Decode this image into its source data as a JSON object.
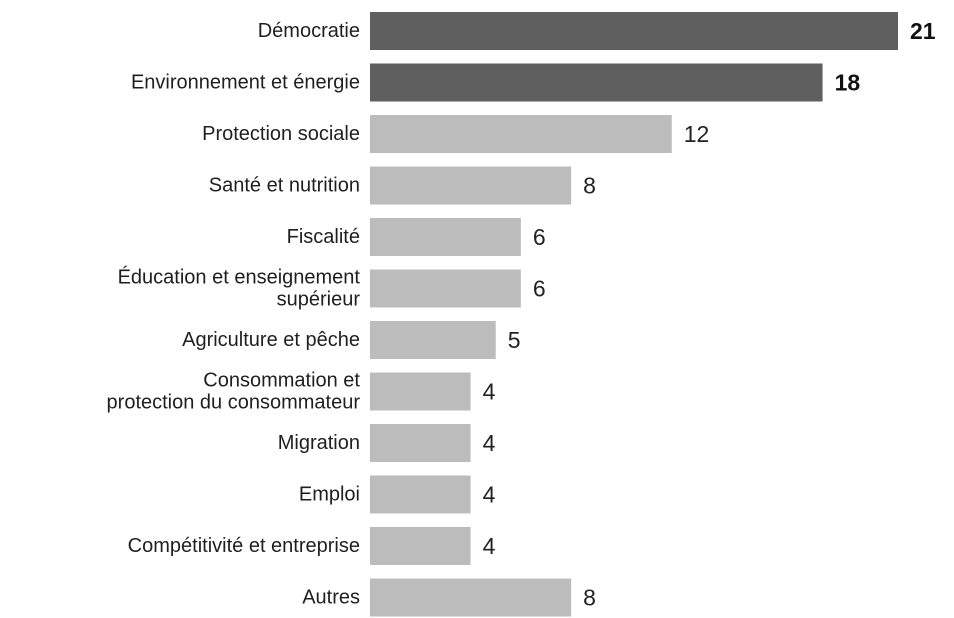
{
  "chart_data": {
    "type": "bar",
    "orientation": "horizontal",
    "categories": [
      "Démocratie",
      "Environnement et énergie",
      "Protection sociale",
      "Santé et nutrition",
      "Fiscalité",
      "Éducation et enseignement supérieur",
      "Agriculture et pêche",
      "Consommation et protection du consommateur",
      "Migration",
      "Emploi",
      "Compétitivité et entreprise",
      "Autres"
    ],
    "values": [
      21,
      18,
      12,
      8,
      6,
      6,
      5,
      4,
      4,
      4,
      4,
      8
    ],
    "highlighted": [
      true,
      true,
      false,
      false,
      false,
      false,
      false,
      false,
      false,
      false,
      false,
      false
    ],
    "xlim": [
      0,
      21
    ],
    "grid": false,
    "legend": "none",
    "colors": {
      "highlight": "#5f5f5f",
      "default": "#bcbcbc",
      "text": "#1f1f1f"
    }
  }
}
